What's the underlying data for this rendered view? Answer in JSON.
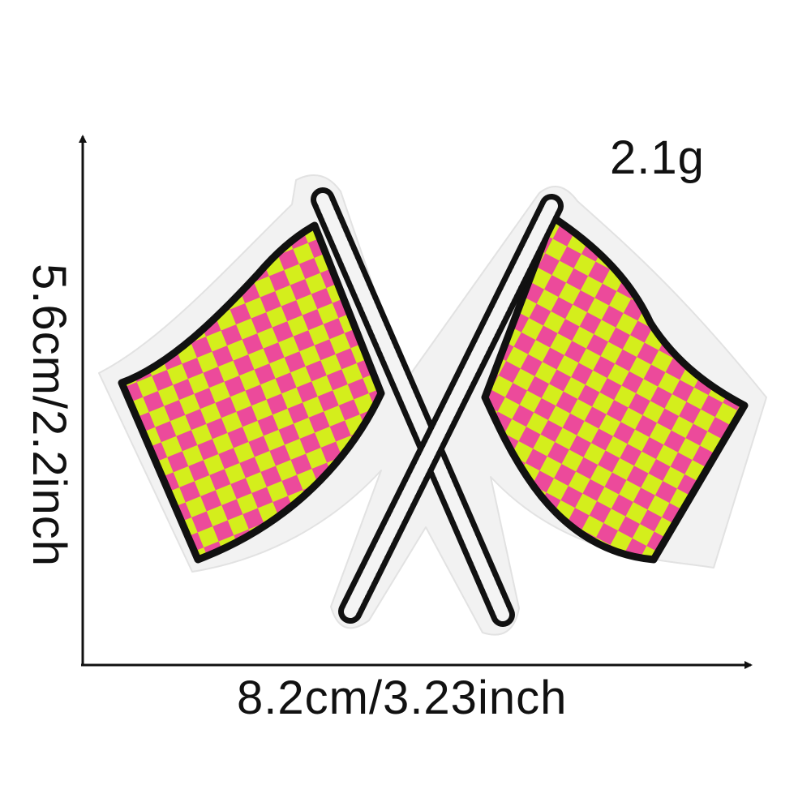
{
  "product": {
    "weight": "2.1g",
    "width": "8.2cm/3.23inch",
    "height": "5.6cm/2.2inch"
  },
  "colors": {
    "pink": "#ec4a9b",
    "lime": "#d4ee1c",
    "outline": "#111111",
    "felt": "#f2f2f2"
  },
  "icons": [
    "dimension-arrow-icon",
    "checkered-flags-patch"
  ]
}
